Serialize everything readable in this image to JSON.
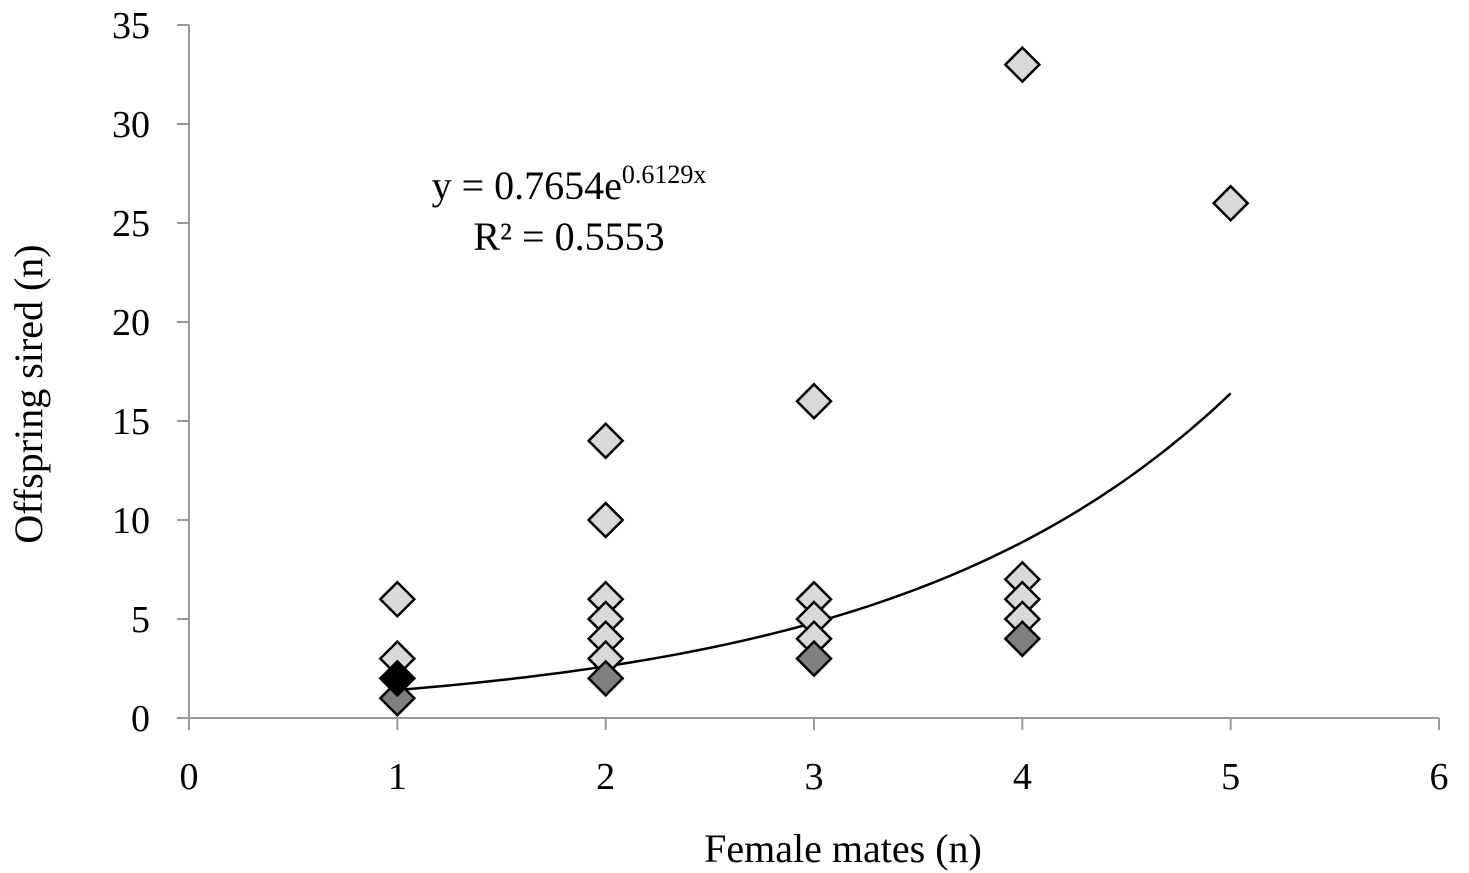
{
  "chart_data": {
    "type": "scatter",
    "title": "",
    "xlabel": "Female mates (n)",
    "ylabel": "Offspring sired (n)",
    "xlim": [
      0,
      6
    ],
    "ylim": [
      0,
      35
    ],
    "xticks": [
      0,
      1,
      2,
      3,
      4,
      5,
      6
    ],
    "yticks": [
      0,
      5,
      10,
      15,
      20,
      25,
      30,
      35
    ],
    "grid": false,
    "legend": "none",
    "colors": {
      "light_marker": "#d9d9d9",
      "dark_marker": "#7f7f7f",
      "black_marker": "#000000",
      "marker_edge": "#000000",
      "axis": "#999999",
      "trendline": "#000000"
    },
    "series": [
      {
        "style": "light",
        "points": [
          {
            "x": 1,
            "y": 6
          },
          {
            "x": 1,
            "y": 3
          },
          {
            "x": 2,
            "y": 14
          },
          {
            "x": 2,
            "y": 10
          },
          {
            "x": 2,
            "y": 6
          },
          {
            "x": 2,
            "y": 5
          },
          {
            "x": 2,
            "y": 4
          },
          {
            "x": 2,
            "y": 3
          },
          {
            "x": 3,
            "y": 16
          },
          {
            "x": 3,
            "y": 6
          },
          {
            "x": 3,
            "y": 5
          },
          {
            "x": 3,
            "y": 4
          },
          {
            "x": 4,
            "y": 33
          },
          {
            "x": 4,
            "y": 7
          },
          {
            "x": 4,
            "y": 6
          },
          {
            "x": 4,
            "y": 5
          },
          {
            "x": 5,
            "y": 26
          }
        ]
      },
      {
        "style": "dark",
        "points": [
          {
            "x": 1,
            "y": 1
          },
          {
            "x": 2,
            "y": 2
          },
          {
            "x": 3,
            "y": 3
          },
          {
            "x": 4,
            "y": 4
          }
        ]
      },
      {
        "style": "black",
        "points": [
          {
            "x": 1,
            "y": 2
          }
        ]
      }
    ],
    "trendline": {
      "type": "exponential",
      "a": 0.7654,
      "b": 0.6129,
      "x_range": [
        1,
        5
      ],
      "equation_prefix": "y = 0.7654e",
      "equation_exponent": "0.6129x",
      "r_squared_text": "R² = 0.5553"
    }
  }
}
